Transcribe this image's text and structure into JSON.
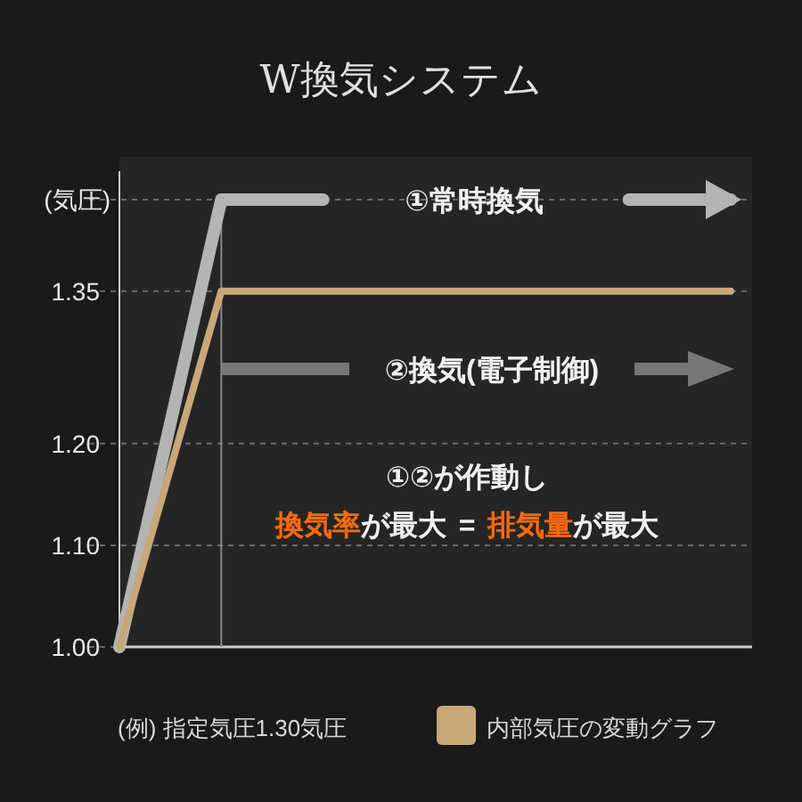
{
  "chart_data": {
    "type": "line",
    "title": "W換気システム",
    "ylabel": "(気圧)",
    "categories": [
      null,
      null,
      null,
      null,
      null,
      null,
      null
    ],
    "series": [
      {
        "name": "①常時換気",
        "color": "#b4b4b4",
        "values": [
          1.0,
          1.44,
          1.44,
          null,
          null,
          1.44,
          1.44
        ]
      },
      {
        "name": "内部気圧の変動グラフ",
        "color": "#c8a878",
        "values": [
          1.0,
          1.35,
          1.35,
          1.35,
          1.35,
          1.35,
          1.35
        ]
      }
    ],
    "ylim": [
      1.0,
      1.44
    ],
    "yticks": [
      {
        "value": 1.0,
        "label": "1.00"
      },
      {
        "value": 1.1,
        "label": "1.10"
      },
      {
        "value": 1.2,
        "label": "1.20"
      },
      1.35,
      {
        "value": 1.44,
        "label": null
      }
    ],
    "grid": "y",
    "legend": "bottom",
    "annotations": [
      "②換気(電子制御)",
      "①②が作動し",
      "換気率",
      "が最大",
      "=",
      "排気量",
      "が最大",
      "(例) 指定気圧1.30気圧"
    ]
  }
}
